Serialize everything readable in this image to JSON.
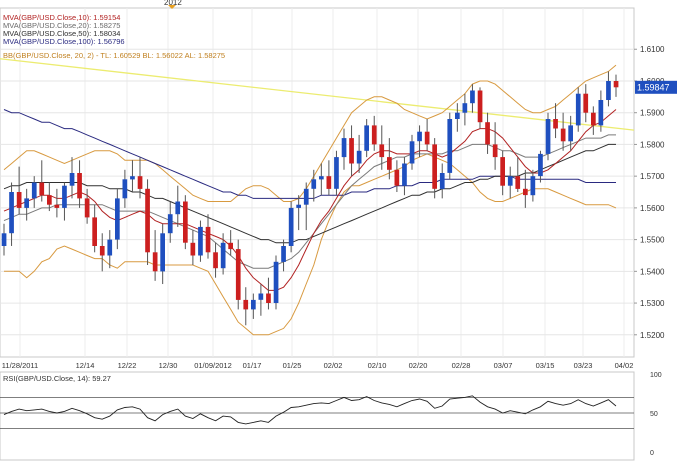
{
  "top_year_label": "2012",
  "legend": {
    "mva10": "MVA(GBP/USD.Close,10): 1.59154",
    "mva20": "MVA(GBP/USD.Close,20): 1.58275",
    "mva50": "MVA(GBP/USD.Close,50): 1.58034",
    "mva100": "MVA(GBP/USD.Close,100): 1.56796",
    "bb": "BB(GBP/USD.Close, 20, 2) -  TL: 1.60529  BL: 1.56022  AL: 1.58275"
  },
  "rsi_label": "RSI(GBP/USD.Close, 14): 59.27",
  "last_price": "1.59847",
  "colors": {
    "up": "#1f4fbf",
    "down": "#cc1f1f",
    "mva10": "#b22222",
    "mva20": "#7a7a7a",
    "mva50": "#303030",
    "mva100": "#2a2a80",
    "bb": "#d89a40",
    "trend": "#ecec70",
    "rsi": "#222222",
    "last_price_bg": "#1f4fbf"
  },
  "chart_data": {
    "type": "candlestick",
    "x_tick_labels": [
      "11/28/2011",
      "12/14",
      "12/22",
      "12/30",
      "01/09/2012",
      "01/17",
      "01/25",
      "02/02",
      "02/10",
      "02/20",
      "02/28",
      "03/07",
      "03/15",
      "03/23",
      "04/02"
    ],
    "price_axis": {
      "ylim": [
        1.513,
        1.623
      ],
      "ticks": [
        "1.6100",
        "1.6000",
        "1.5900",
        "1.5800",
        "1.5700",
        "1.5600",
        "1.5500",
        "1.5400",
        "1.5300",
        "1.5200"
      ]
    },
    "candles": [
      [
        1.548,
        1.555,
        1.545,
        1.552
      ],
      [
        1.552,
        1.568,
        1.548,
        1.565
      ],
      [
        1.565,
        1.573,
        1.558,
        1.56
      ],
      [
        1.56,
        1.566,
        1.556,
        1.563
      ],
      [
        1.563,
        1.57,
        1.56,
        1.568
      ],
      [
        1.568,
        1.575,
        1.562,
        1.564
      ],
      [
        1.564,
        1.568,
        1.559,
        1.561
      ],
      [
        1.561,
        1.566,
        1.557,
        1.56
      ],
      [
        1.56,
        1.568,
        1.556,
        1.567
      ],
      [
        1.567,
        1.576,
        1.563,
        1.571
      ],
      [
        1.571,
        1.575,
        1.56,
        1.563
      ],
      [
        1.563,
        1.566,
        1.555,
        1.557
      ],
      [
        1.557,
        1.561,
        1.546,
        1.548
      ],
      [
        1.548,
        1.552,
        1.54,
        1.545
      ],
      [
        1.545,
        1.553,
        1.541,
        1.55
      ],
      [
        1.55,
        1.566,
        1.547,
        1.563
      ],
      [
        1.563,
        1.572,
        1.56,
        1.569
      ],
      [
        1.569,
        1.575,
        1.565,
        1.57
      ],
      [
        1.57,
        1.576,
        1.563,
        1.566
      ],
      [
        1.566,
        1.569,
        1.542,
        1.546
      ],
      [
        1.546,
        1.553,
        1.537,
        1.54
      ],
      [
        1.54,
        1.555,
        1.536,
        1.552
      ],
      [
        1.552,
        1.562,
        1.549,
        1.558
      ],
      [
        1.558,
        1.567,
        1.554,
        1.562
      ],
      [
        1.562,
        1.564,
        1.547,
        1.549
      ],
      [
        1.549,
        1.553,
        1.542,
        1.545
      ],
      [
        1.545,
        1.556,
        1.543,
        1.554
      ],
      [
        1.554,
        1.558,
        1.544,
        1.546
      ],
      [
        1.546,
        1.549,
        1.538,
        1.541
      ],
      [
        1.541,
        1.552,
        1.539,
        1.549
      ],
      [
        1.549,
        1.553,
        1.545,
        1.547
      ],
      [
        1.547,
        1.55,
        1.528,
        1.531
      ],
      [
        1.531,
        1.535,
        1.523,
        1.528
      ],
      [
        1.528,
        1.533,
        1.525,
        1.531
      ],
      [
        1.531,
        1.536,
        1.526,
        1.533
      ],
      [
        1.533,
        1.538,
        1.528,
        1.53
      ],
      [
        1.53,
        1.545,
        1.528,
        1.543
      ],
      [
        1.543,
        1.55,
        1.54,
        1.548
      ],
      [
        1.548,
        1.562,
        1.546,
        1.56
      ],
      [
        1.56,
        1.564,
        1.553,
        1.561
      ],
      [
        1.561,
        1.568,
        1.553,
        1.566
      ],
      [
        1.566,
        1.572,
        1.562,
        1.569
      ],
      [
        1.569,
        1.574,
        1.564,
        1.57
      ],
      [
        1.57,
        1.575,
        1.564,
        1.566
      ],
      [
        1.566,
        1.578,
        1.564,
        1.576
      ],
      [
        1.576,
        1.585,
        1.572,
        1.582
      ],
      [
        1.582,
        1.586,
        1.57,
        1.574
      ],
      [
        1.574,
        1.583,
        1.571,
        1.578
      ],
      [
        1.578,
        1.588,
        1.576,
        1.586
      ],
      [
        1.586,
        1.589,
        1.578,
        1.58
      ],
      [
        1.58,
        1.586,
        1.572,
        1.576
      ],
      [
        1.576,
        1.582,
        1.569,
        1.572
      ],
      [
        1.572,
        1.575,
        1.565,
        1.567
      ],
      [
        1.567,
        1.576,
        1.564,
        1.574
      ],
      [
        1.574,
        1.583,
        1.572,
        1.581
      ],
      [
        1.581,
        1.586,
        1.576,
        1.584
      ],
      [
        1.584,
        1.588,
        1.578,
        1.58
      ],
      [
        1.58,
        1.582,
        1.563,
        1.566
      ],
      [
        1.566,
        1.574,
        1.563,
        1.571
      ],
      [
        1.571,
        1.59,
        1.569,
        1.588
      ],
      [
        1.588,
        1.593,
        1.584,
        1.59
      ],
      [
        1.59,
        1.596,
        1.586,
        1.593
      ],
      [
        1.593,
        1.599,
        1.59,
        1.597
      ],
      [
        1.597,
        1.598,
        1.585,
        1.587
      ],
      [
        1.587,
        1.59,
        1.577,
        1.58
      ],
      [
        1.58,
        1.587,
        1.572,
        1.576
      ],
      [
        1.576,
        1.578,
        1.564,
        1.567
      ],
      [
        1.567,
        1.573,
        1.563,
        1.57
      ],
      [
        1.57,
        1.576,
        1.565,
        1.566
      ],
      [
        1.566,
        1.572,
        1.56,
        1.564
      ],
      [
        1.564,
        1.572,
        1.562,
        1.57
      ],
      [
        1.57,
        1.578,
        1.568,
        1.577
      ],
      [
        1.577,
        1.59,
        1.575,
        1.588
      ],
      [
        1.588,
        1.593,
        1.582,
        1.585
      ],
      [
        1.585,
        1.59,
        1.578,
        1.581
      ],
      [
        1.581,
        1.589,
        1.578,
        1.586
      ],
      [
        1.586,
        1.598,
        1.584,
        1.596
      ],
      [
        1.596,
        1.599,
        1.587,
        1.59
      ],
      [
        1.59,
        1.592,
        1.583,
        1.586
      ],
      [
        1.586,
        1.597,
        1.584,
        1.594
      ],
      [
        1.594,
        1.603,
        1.592,
        1.6
      ],
      [
        1.6,
        1.602,
        1.595,
        1.598
      ]
    ],
    "mva10": [
      1.559,
      1.56,
      1.561,
      1.562,
      1.563,
      1.564,
      1.564,
      1.563,
      1.563,
      1.564,
      1.565,
      1.564,
      1.562,
      1.559,
      1.557,
      1.556,
      1.557,
      1.558,
      1.559,
      1.558,
      1.556,
      1.555,
      1.555,
      1.555,
      1.555,
      1.554,
      1.553,
      1.552,
      1.551,
      1.55,
      1.548,
      1.545,
      1.541,
      1.538,
      1.536,
      1.534,
      1.534,
      1.535,
      1.538,
      1.542,
      1.547,
      1.552,
      1.556,
      1.559,
      1.563,
      1.567,
      1.57,
      1.572,
      1.575,
      1.577,
      1.578,
      1.578,
      1.577,
      1.577,
      1.577,
      1.578,
      1.578,
      1.577,
      1.576,
      1.577,
      1.579,
      1.581,
      1.584,
      1.585,
      1.585,
      1.584,
      1.582,
      1.579,
      1.576,
      1.573,
      1.571,
      1.571,
      1.572,
      1.574,
      1.576,
      1.578,
      1.581,
      1.584,
      1.586,
      1.587,
      1.589,
      1.591
    ],
    "mva20": [
      1.556,
      1.557,
      1.558,
      1.558,
      1.559,
      1.56,
      1.56,
      1.561,
      1.561,
      1.561,
      1.561,
      1.561,
      1.561,
      1.561,
      1.56,
      1.559,
      1.559,
      1.559,
      1.559,
      1.559,
      1.558,
      1.557,
      1.556,
      1.555,
      1.554,
      1.553,
      1.552,
      1.551,
      1.549,
      1.547,
      1.545,
      1.543,
      1.542,
      1.541,
      1.541,
      1.541,
      1.542,
      1.543,
      1.544,
      1.546,
      1.549,
      1.552,
      1.555,
      1.558,
      1.561,
      1.564,
      1.567,
      1.569,
      1.571,
      1.573,
      1.574,
      1.575,
      1.576,
      1.576,
      1.577,
      1.577,
      1.577,
      1.577,
      1.577,
      1.578,
      1.578,
      1.579,
      1.58,
      1.58,
      1.58,
      1.579,
      1.578,
      1.578,
      1.577,
      1.576,
      1.576,
      1.576,
      1.577,
      1.578,
      1.579,
      1.58,
      1.581,
      1.582,
      1.582,
      1.582,
      1.583,
      1.583
    ],
    "mva50": [
      1.566,
      1.567,
      1.567,
      1.568,
      1.568,
      1.568,
      1.568,
      1.568,
      1.568,
      1.568,
      1.568,
      1.567,
      1.567,
      1.567,
      1.566,
      1.566,
      1.566,
      1.565,
      1.565,
      1.564,
      1.563,
      1.563,
      1.562,
      1.561,
      1.56,
      1.559,
      1.558,
      1.557,
      1.556,
      1.555,
      1.554,
      1.553,
      1.552,
      1.551,
      1.55,
      1.55,
      1.549,
      1.549,
      1.549,
      1.55,
      1.55,
      1.551,
      1.552,
      1.553,
      1.554,
      1.555,
      1.556,
      1.557,
      1.558,
      1.559,
      1.56,
      1.561,
      1.562,
      1.563,
      1.564,
      1.564,
      1.565,
      1.565,
      1.566,
      1.566,
      1.567,
      1.568,
      1.568,
      1.569,
      1.569,
      1.57,
      1.57,
      1.57,
      1.57,
      1.571,
      1.571,
      1.572,
      1.573,
      1.574,
      1.575,
      1.576,
      1.577,
      1.578,
      1.578,
      1.579,
      1.58,
      1.58
    ],
    "mva100": [
      1.591,
      1.59,
      1.59,
      1.589,
      1.588,
      1.587,
      1.587,
      1.586,
      1.585,
      1.585,
      1.584,
      1.583,
      1.582,
      1.581,
      1.58,
      1.579,
      1.578,
      1.577,
      1.576,
      1.575,
      1.574,
      1.573,
      1.572,
      1.571,
      1.57,
      1.569,
      1.568,
      1.567,
      1.566,
      1.565,
      1.565,
      1.564,
      1.564,
      1.563,
      1.563,
      1.563,
      1.563,
      1.563,
      1.563,
      1.563,
      1.563,
      1.563,
      1.564,
      1.564,
      1.564,
      1.564,
      1.565,
      1.565,
      1.565,
      1.566,
      1.566,
      1.566,
      1.567,
      1.567,
      1.567,
      1.568,
      1.568,
      1.568,
      1.569,
      1.569,
      1.569,
      1.569,
      1.569,
      1.57,
      1.57,
      1.57,
      1.57,
      1.57,
      1.569,
      1.569,
      1.569,
      1.569,
      1.569,
      1.569,
      1.569,
      1.569,
      1.569,
      1.568,
      1.568,
      1.568,
      1.568,
      1.568
    ],
    "bb_upper": [
      1.572,
      1.574,
      1.576,
      1.578,
      1.578,
      1.577,
      1.576,
      1.575,
      1.574,
      1.575,
      1.576,
      1.577,
      1.578,
      1.578,
      1.578,
      1.577,
      1.575,
      1.575,
      1.575,
      1.575,
      1.574,
      1.572,
      1.57,
      1.568,
      1.566,
      1.564,
      1.563,
      1.562,
      1.562,
      1.562,
      1.562,
      1.564,
      1.566,
      1.567,
      1.567,
      1.566,
      1.564,
      1.562,
      1.562,
      1.563,
      1.566,
      1.57,
      1.574,
      1.578,
      1.582,
      1.586,
      1.59,
      1.592,
      1.594,
      1.595,
      1.595,
      1.594,
      1.593,
      1.591,
      1.59,
      1.589,
      1.588,
      1.589,
      1.59,
      1.592,
      1.594,
      1.596,
      1.599,
      1.6,
      1.6,
      1.599,
      1.597,
      1.595,
      1.593,
      1.591,
      1.59,
      1.59,
      1.591,
      1.592,
      1.594,
      1.596,
      1.598,
      1.6,
      1.601,
      1.602,
      1.603,
      1.605
    ],
    "bb_lower": [
      1.54,
      1.54,
      1.54,
      1.538,
      1.54,
      1.543,
      1.544,
      1.547,
      1.548,
      1.547,
      1.546,
      1.545,
      1.544,
      1.544,
      1.542,
      1.541,
      1.543,
      1.543,
      1.543,
      1.543,
      1.542,
      1.542,
      1.542,
      1.542,
      1.542,
      1.542,
      1.541,
      1.54,
      1.536,
      1.532,
      1.528,
      1.524,
      1.522,
      1.52,
      1.52,
      1.52,
      1.521,
      1.522,
      1.525,
      1.53,
      1.536,
      1.542,
      1.55,
      1.556,
      1.561,
      1.565,
      1.567,
      1.567,
      1.568,
      1.569,
      1.57,
      1.571,
      1.572,
      1.573,
      1.575,
      1.576,
      1.577,
      1.576,
      1.575,
      1.574,
      1.572,
      1.57,
      1.568,
      1.565,
      1.563,
      1.562,
      1.562,
      1.563,
      1.564,
      1.565,
      1.566,
      1.566,
      1.566,
      1.565,
      1.564,
      1.563,
      1.562,
      1.561,
      1.561,
      1.561,
      1.561,
      1.56
    ],
    "trend_line": {
      "start": 1.607,
      "end": 1.5845
    },
    "rsi": {
      "ylim": [
        0,
        100
      ],
      "ticks": [
        "100",
        "50",
        "0"
      ],
      "levels": [
        70,
        50,
        30
      ],
      "values": [
        48,
        52,
        55,
        53,
        54,
        55,
        52,
        50,
        52,
        56,
        53,
        49,
        44,
        42,
        46,
        54,
        57,
        58,
        55,
        44,
        40,
        48,
        52,
        55,
        46,
        43,
        49,
        44,
        40,
        46,
        45,
        38,
        36,
        38,
        40,
        38,
        46,
        51,
        57,
        58,
        60,
        62,
        63,
        62,
        66,
        70,
        66,
        67,
        71,
        66,
        63,
        61,
        58,
        62,
        66,
        68,
        65,
        56,
        59,
        68,
        69,
        70,
        72,
        64,
        58,
        55,
        50,
        53,
        51,
        49,
        54,
        58,
        65,
        62,
        60,
        62,
        67,
        62,
        59,
        63,
        67,
        59
      ]
    }
  }
}
